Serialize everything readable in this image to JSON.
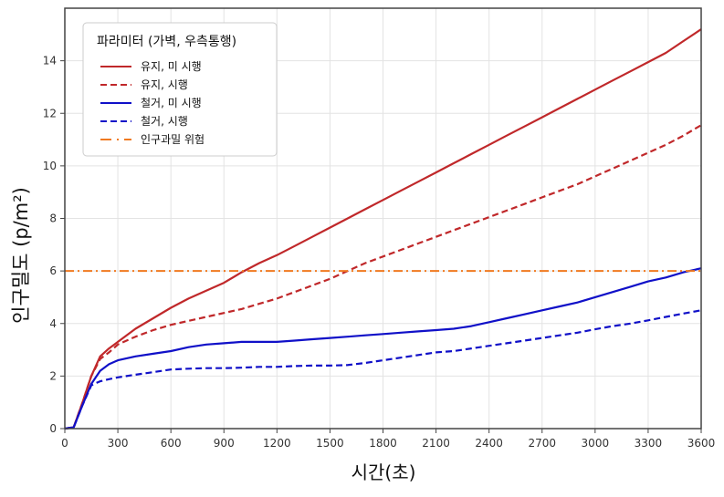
{
  "chart_data": {
    "type": "line",
    "title": "",
    "xlabel": "시간(초)",
    "ylabel": "인구밀도 (p/m²)",
    "xlim": [
      0,
      3600
    ],
    "ylim": [
      0,
      16
    ],
    "xticks": [
      0,
      300,
      600,
      900,
      1200,
      1500,
      1800,
      2100,
      2400,
      2700,
      3000,
      3300,
      3600
    ],
    "yticks": [
      0,
      2,
      4,
      6,
      8,
      10,
      12,
      14
    ],
    "grid": true,
    "legend": {
      "title": "파라미터 (가벽, 우측통행)",
      "position": "upper left",
      "entries": [
        "유지, 미 시행",
        "유지, 시행",
        "철거, 미 시행",
        "철거, 시행",
        "인구과밀 위험"
      ]
    },
    "x": [
      0,
      50,
      100,
      150,
      200,
      250,
      300,
      400,
      500,
      600,
      700,
      800,
      900,
      1000,
      1100,
      1200,
      1300,
      1400,
      1500,
      1600,
      1700,
      1800,
      1900,
      2000,
      2100,
      2200,
      2300,
      2400,
      2500,
      2600,
      2700,
      2800,
      2900,
      3000,
      3100,
      3200,
      3300,
      3400,
      3500,
      3600
    ],
    "series": [
      {
        "name": "유지, 미 시행",
        "color": "#c0282a",
        "style": "solid",
        "values": [
          0,
          0.05,
          1.0,
          2.0,
          2.75,
          3.05,
          3.3,
          3.8,
          4.2,
          4.6,
          4.95,
          5.25,
          5.55,
          5.95,
          6.3,
          6.6,
          6.95,
          7.3,
          7.65,
          8.0,
          8.35,
          8.7,
          9.05,
          9.4,
          9.75,
          10.1,
          10.45,
          10.8,
          11.15,
          11.5,
          11.85,
          12.2,
          12.55,
          12.9,
          13.25,
          13.6,
          13.95,
          14.3,
          14.75,
          15.2
        ]
      },
      {
        "name": "유지, 시행",
        "color": "#c0282a",
        "style": "dashed",
        "values": [
          0,
          0.05,
          1.0,
          2.0,
          2.65,
          2.9,
          3.2,
          3.5,
          3.75,
          3.95,
          4.1,
          4.25,
          4.4,
          4.55,
          4.75,
          4.95,
          5.2,
          5.45,
          5.7,
          6.0,
          6.3,
          6.55,
          6.8,
          7.05,
          7.3,
          7.55,
          7.8,
          8.05,
          8.3,
          8.55,
          8.8,
          9.05,
          9.3,
          9.6,
          9.9,
          10.2,
          10.5,
          10.8,
          11.15,
          11.55
        ]
      },
      {
        "name": "철거, 미 시행",
        "color": "#1010c8",
        "style": "solid",
        "values": [
          0,
          0.05,
          0.9,
          1.7,
          2.2,
          2.45,
          2.6,
          2.75,
          2.85,
          2.95,
          3.1,
          3.2,
          3.25,
          3.3,
          3.3,
          3.3,
          3.35,
          3.4,
          3.45,
          3.5,
          3.55,
          3.6,
          3.65,
          3.7,
          3.75,
          3.8,
          3.9,
          4.05,
          4.2,
          4.35,
          4.5,
          4.65,
          4.8,
          5.0,
          5.2,
          5.4,
          5.6,
          5.75,
          5.95,
          6.1
        ]
      },
      {
        "name": "철거, 시행",
        "color": "#1010c8",
        "style": "dashed",
        "values": [
          0,
          0.05,
          0.9,
          1.65,
          1.8,
          1.88,
          1.95,
          2.05,
          2.15,
          2.25,
          2.28,
          2.3,
          2.3,
          2.32,
          2.35,
          2.35,
          2.38,
          2.4,
          2.4,
          2.42,
          2.5,
          2.6,
          2.7,
          2.8,
          2.9,
          2.95,
          3.05,
          3.15,
          3.25,
          3.35,
          3.45,
          3.55,
          3.65,
          3.78,
          3.9,
          4.0,
          4.12,
          4.25,
          4.38,
          4.5
        ]
      },
      {
        "name": "인구과밀 위험",
        "color": "#f07a20",
        "style": "dashdot",
        "values": [
          6,
          6,
          6,
          6,
          6,
          6,
          6,
          6,
          6,
          6,
          6,
          6,
          6,
          6,
          6,
          6,
          6,
          6,
          6,
          6,
          6,
          6,
          6,
          6,
          6,
          6,
          6,
          6,
          6,
          6,
          6,
          6,
          6,
          6,
          6,
          6,
          6,
          6,
          6,
          6
        ]
      }
    ]
  }
}
